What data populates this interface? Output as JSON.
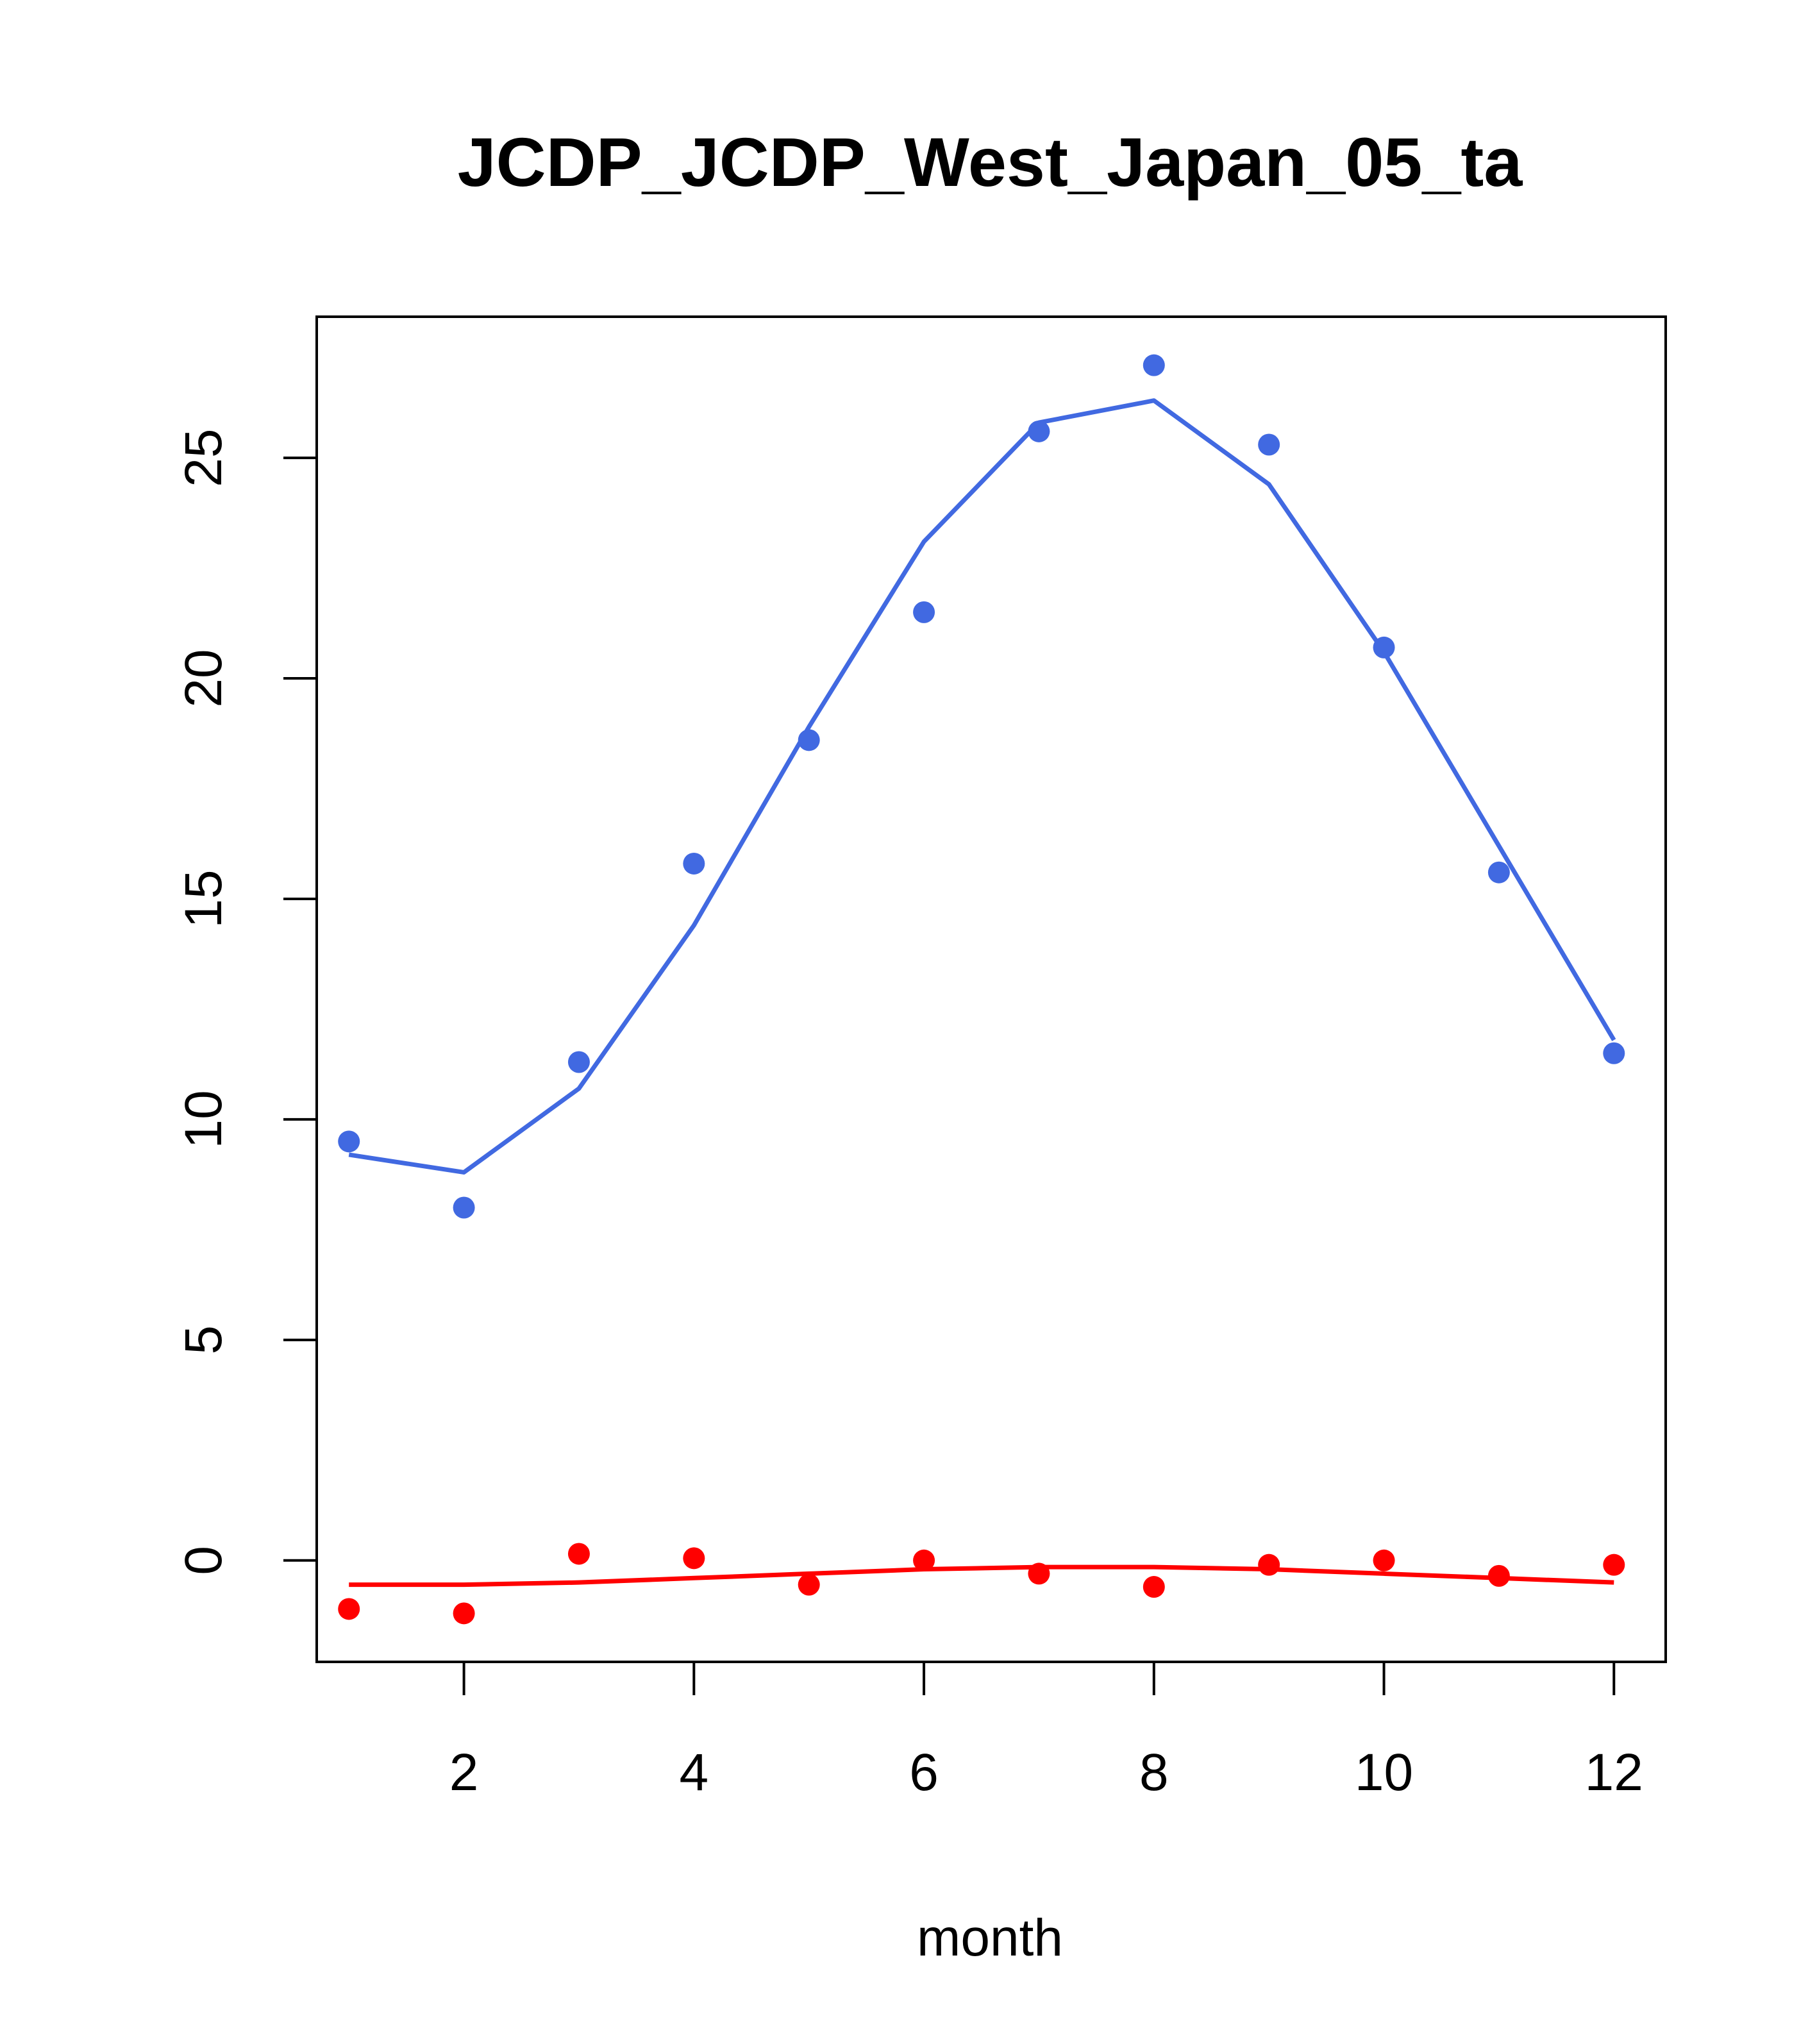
{
  "chart_data": {
    "type": "line",
    "title": "JCDP_JCDP_West_Japan_05_ta",
    "xlabel": "month",
    "ylabel": "",
    "xlim": [
      0.72,
      12.45
    ],
    "ylim": [
      -2.3,
      28.2
    ],
    "x_ticks": [
      2,
      4,
      6,
      8,
      10,
      12
    ],
    "y_ticks": [
      0,
      5,
      10,
      15,
      20,
      25
    ],
    "grid": false,
    "legend": "none",
    "x": [
      1,
      2,
      3,
      4,
      5,
      6,
      7,
      8,
      9,
      10,
      11,
      12
    ],
    "series": [
      {
        "color": "#4169e1",
        "points": [
          9.5,
          8.0,
          11.3,
          15.8,
          18.6,
          21.5,
          25.6,
          27.1,
          25.3,
          20.7,
          15.6,
          11.5
        ],
        "line": [
          9.2,
          8.8,
          10.7,
          14.4,
          18.9,
          23.1,
          25.8,
          26.3,
          24.4,
          20.6,
          16.2,
          11.8
        ]
      },
      {
        "color": "#ff0000",
        "points": [
          -1.1,
          -1.2,
          0.15,
          0.05,
          -0.55,
          0.0,
          -0.3,
          -0.6,
          -0.1,
          0.0,
          -0.35,
          -0.1
        ],
        "line": [
          -0.55,
          -0.55,
          -0.5,
          -0.4,
          -0.3,
          -0.2,
          -0.15,
          -0.15,
          -0.2,
          -0.3,
          -0.4,
          -0.5
        ]
      }
    ]
  }
}
